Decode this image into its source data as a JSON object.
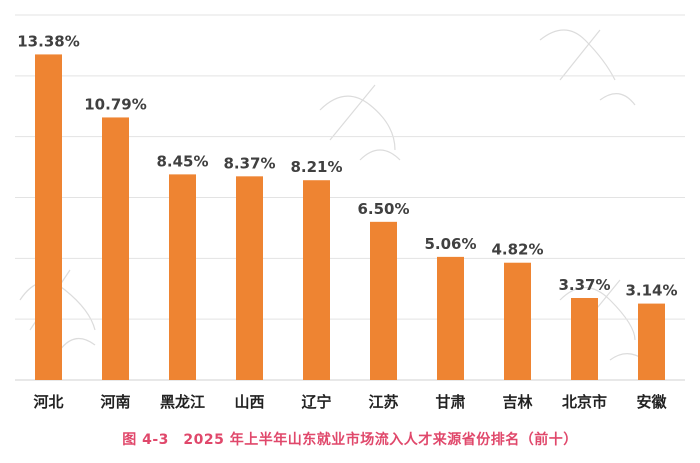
{
  "colors": {
    "bar": "#EE8432",
    "label": "#404040",
    "grid": "#e3e3e3",
    "axis": "#d0d0d0",
    "caption": "#E0486B"
  },
  "caption": "图 4-3　2025 年上半年山东就业市场流入人才来源省份排名（前十）",
  "chart_data": {
    "type": "bar",
    "title": "",
    "xlabel": "",
    "ylabel": "",
    "ylim": [
      0,
      15
    ],
    "grid": true,
    "categories": [
      "河北",
      "河南",
      "黑龙江",
      "山西",
      "辽宁",
      "江苏",
      "甘肃",
      "吉林",
      "北京市",
      "安徽"
    ],
    "values": [
      13.38,
      10.79,
      8.45,
      8.37,
      8.21,
      6.5,
      5.06,
      4.82,
      3.37,
      3.14
    ],
    "data_labels": [
      "13.38%",
      "10.79%",
      "8.45%",
      "8.37%",
      "8.21%",
      "6.50%",
      "5.06%",
      "4.82%",
      "3.37%",
      "3.14%"
    ]
  }
}
